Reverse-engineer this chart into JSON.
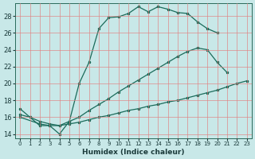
{
  "xlabel": "Humidex (Indice chaleur)",
  "bg_color": "#c8e8e8",
  "grid_color": "#e08080",
  "line_color": "#1a6b5a",
  "xlim": [
    -0.5,
    23.5
  ],
  "ylim": [
    13.5,
    29.5
  ],
  "xticks": [
    0,
    1,
    2,
    3,
    4,
    5,
    6,
    7,
    8,
    9,
    10,
    11,
    12,
    13,
    14,
    15,
    16,
    17,
    18,
    19,
    20,
    21,
    22,
    23
  ],
  "yticks": [
    14,
    16,
    18,
    20,
    22,
    24,
    26,
    28
  ],
  "curve1_x": [
    0,
    1,
    2,
    3,
    4,
    5,
    6,
    7,
    8,
    9,
    10,
    11,
    12,
    13,
    14,
    15,
    16,
    17,
    18,
    19,
    20
  ],
  "curve1_y": [
    17.0,
    16.0,
    15.0,
    15.0,
    14.0,
    15.5,
    20.0,
    22.5,
    26.5,
    27.8,
    27.9,
    28.3,
    29.1,
    28.5,
    29.1,
    28.8,
    28.4,
    28.3,
    27.3,
    26.5,
    26.0
  ],
  "curve2_x": [
    0,
    2,
    3,
    4,
    5,
    6,
    7,
    8,
    9,
    10,
    11,
    12,
    13,
    14,
    15,
    16,
    17,
    18,
    19,
    20,
    21
  ],
  "curve2_y": [
    16.0,
    15.2,
    15.0,
    15.0,
    15.5,
    16.0,
    16.8,
    17.5,
    18.2,
    19.0,
    19.7,
    20.4,
    21.1,
    21.8,
    22.5,
    23.2,
    23.8,
    24.2,
    24.0,
    22.5,
    21.3
  ],
  "curve3_x": [
    0,
    1,
    2,
    3,
    4,
    5,
    6,
    7,
    8,
    9,
    10,
    11,
    12,
    13,
    14,
    15,
    16,
    17,
    18,
    19,
    20,
    21,
    22,
    23
  ],
  "curve3_y": [
    16.3,
    16.0,
    15.5,
    15.2,
    15.0,
    15.2,
    15.4,
    15.7,
    16.0,
    16.2,
    16.5,
    16.8,
    17.0,
    17.3,
    17.5,
    17.8,
    18.0,
    18.3,
    18.6,
    18.9,
    19.2,
    19.6,
    20.0,
    20.3
  ]
}
